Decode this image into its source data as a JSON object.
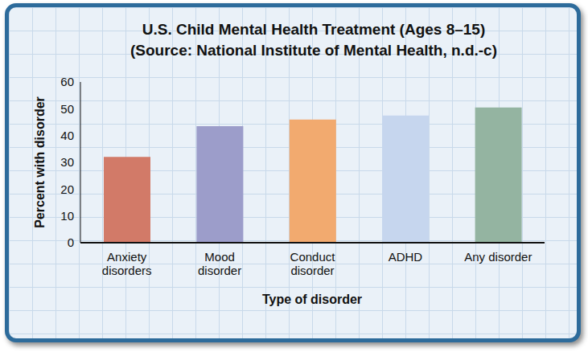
{
  "chart_data": {
    "type": "bar",
    "title": "U.S. Child Mental Health Treatment (Ages 8–15)",
    "subtitle": "(Source: National Institute of Mental Health, n.d.-c)",
    "x_label": "Type of disorder",
    "y_label": "Percent with disorder",
    "categories": [
      "Anxiety disorders",
      "Mood disorder",
      "Conduct disorder",
      "ADHD",
      "Any disorder"
    ],
    "values": [
      32,
      43.5,
      46,
      47.5,
      50.5
    ],
    "colors": [
      "#d27a68",
      "#9c9dca",
      "#f2aa6f",
      "#c6d6ee",
      "#94b4a1"
    ],
    "ylim": [
      0,
      60
    ],
    "yticks": [
      0,
      10,
      20,
      30,
      40,
      50,
      60
    ],
    "grid": false
  }
}
